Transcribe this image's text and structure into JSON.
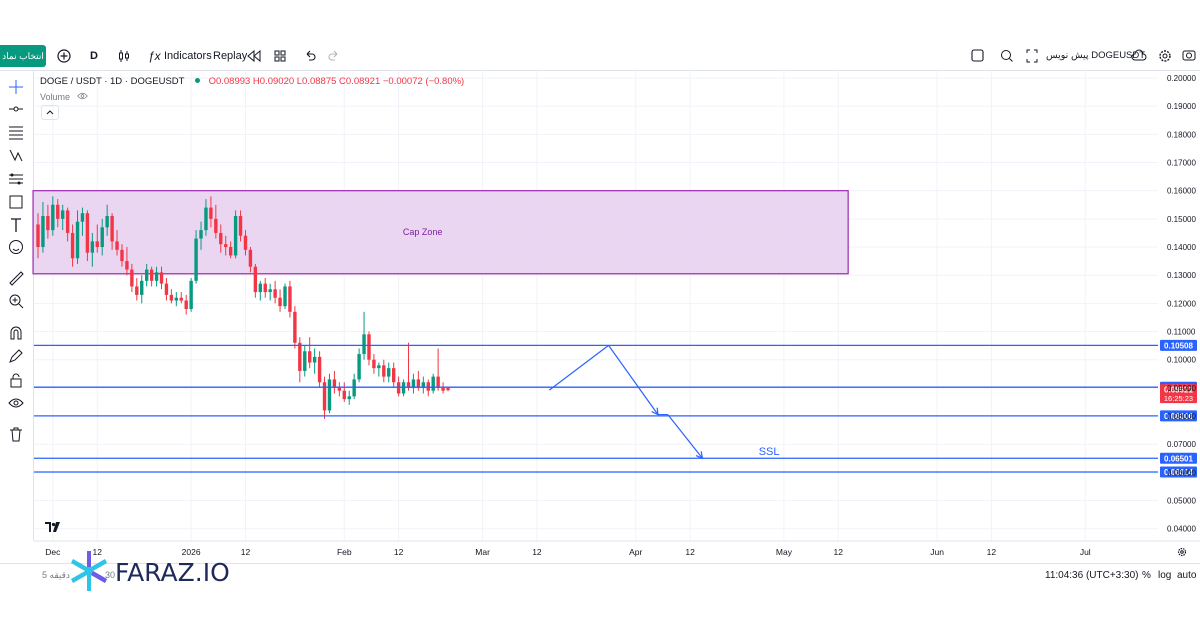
{
  "toolbar": {
    "symbol_button": "انتخاب نماد",
    "interval": "D",
    "indicators_label": "Indicators",
    "replay_label": "Replay",
    "publish_label": "پیش نویس DOGEUSDT",
    "icons": [
      "plus-circle-icon",
      "candles-icon",
      "fx-icon",
      "rewind-icon",
      "layout-icon",
      "undo-icon",
      "redo-icon",
      "square-icon",
      "alert-icon",
      "fullscreen-icon",
      "cloud-icon",
      "gear-icon",
      "camera-icon"
    ]
  },
  "legend": {
    "title": "DOGE / USDT · 1D · DOGEUSDT",
    "ohlc": "O0.08993 H0.09020 L0.08875 C0.08921 −0.00072 (−0.80%)",
    "volume_label": "Volume"
  },
  "bottombar": {
    "time": "11:04:36 (UTC+3:30)",
    "percent": "%",
    "log": "log",
    "auto": "auto",
    "left_range": "5 دقیقه",
    "left_range2": "30"
  },
  "logo": {
    "text": "FARAZ.IO"
  },
  "colors": {
    "up": "#089981",
    "down": "#f23645",
    "line": "#2962ff",
    "zone_border": "#9c27b0",
    "zone_fill": "#e7cff0",
    "current": "#f23645"
  },
  "chart_data": {
    "type": "candlestick",
    "title": "DOGE / USDT · 1D · DOGEUSDT",
    "ylim": [
      0.035,
      0.2
    ],
    "y_ticks": [
      0.2,
      0.19,
      0.18,
      0.17,
      0.16,
      0.15,
      0.14,
      0.13,
      0.12,
      0.11,
      0.1,
      0.09,
      0.08,
      0.07,
      0.06,
      0.05,
      0.04
    ],
    "y_tick_labels": [
      "0.20000",
      "0.19000",
      "0.18000",
      "0.17000",
      "0.16000",
      "0.15000",
      "0.14000",
      "0.13000",
      "0.12000",
      "0.11000",
      "0.10000",
      "0.09000",
      "0.08000",
      "0.07000",
      "0.06000",
      "0.05000",
      "0.04000"
    ],
    "x_ticks": [
      {
        "label": "Dec",
        "day": 3
      },
      {
        "label": "12",
        "day": 12
      },
      {
        "label": "2026",
        "day": 31
      },
      {
        "label": "12",
        "day": 42
      },
      {
        "label": "Feb",
        "day": 62
      },
      {
        "label": "12",
        "day": 73
      },
      {
        "label": "Mar",
        "day": 90
      },
      {
        "label": "12",
        "day": 101
      },
      {
        "label": "Apr",
        "day": 121
      },
      {
        "label": "12",
        "day": 132
      },
      {
        "label": "May",
        "day": 151
      },
      {
        "label": "12",
        "day": 162
      },
      {
        "label": "Jun",
        "day": 182
      },
      {
        "label": "12",
        "day": 193
      },
      {
        "label": "Jul",
        "day": 212
      }
    ],
    "xlim": [
      0,
      222
    ],
    "candles": [
      [
        0.148,
        0.152,
        0.136,
        0.14
      ],
      [
        0.14,
        0.156,
        0.138,
        0.151
      ],
      [
        0.151,
        0.155,
        0.143,
        0.146
      ],
      [
        0.146,
        0.158,
        0.144,
        0.155
      ],
      [
        0.155,
        0.157,
        0.147,
        0.15
      ],
      [
        0.15,
        0.155,
        0.146,
        0.153
      ],
      [
        0.153,
        0.154,
        0.142,
        0.145
      ],
      [
        0.145,
        0.148,
        0.133,
        0.136
      ],
      [
        0.136,
        0.153,
        0.134,
        0.149
      ],
      [
        0.149,
        0.154,
        0.144,
        0.152
      ],
      [
        0.152,
        0.153,
        0.135,
        0.138
      ],
      [
        0.138,
        0.145,
        0.133,
        0.142
      ],
      [
        0.142,
        0.148,
        0.138,
        0.14
      ],
      [
        0.14,
        0.15,
        0.137,
        0.147
      ],
      [
        0.147,
        0.155,
        0.144,
        0.151
      ],
      [
        0.151,
        0.152,
        0.139,
        0.142
      ],
      [
        0.142,
        0.146,
        0.137,
        0.139
      ],
      [
        0.139,
        0.141,
        0.133,
        0.135
      ],
      [
        0.135,
        0.14,
        0.13,
        0.132
      ],
      [
        0.132,
        0.134,
        0.124,
        0.126
      ],
      [
        0.126,
        0.129,
        0.121,
        0.123
      ],
      [
        0.123,
        0.13,
        0.12,
        0.128
      ],
      [
        0.128,
        0.134,
        0.126,
        0.132
      ],
      [
        0.132,
        0.133,
        0.126,
        0.128
      ],
      [
        0.128,
        0.133,
        0.126,
        0.131
      ],
      [
        0.131,
        0.133,
        0.125,
        0.127
      ],
      [
        0.127,
        0.129,
        0.121,
        0.123
      ],
      [
        0.123,
        0.125,
        0.12,
        0.121
      ],
      [
        0.121,
        0.124,
        0.119,
        0.122
      ],
      [
        0.122,
        0.124,
        0.12,
        0.121
      ],
      [
        0.121,
        0.123,
        0.116,
        0.118
      ],
      [
        0.118,
        0.129,
        0.117,
        0.128
      ],
      [
        0.128,
        0.146,
        0.127,
        0.143
      ],
      [
        0.143,
        0.149,
        0.139,
        0.146
      ],
      [
        0.146,
        0.157,
        0.144,
        0.154
      ],
      [
        0.154,
        0.158,
        0.147,
        0.15
      ],
      [
        0.15,
        0.155,
        0.143,
        0.145
      ],
      [
        0.145,
        0.148,
        0.138,
        0.141
      ],
      [
        0.141,
        0.144,
        0.137,
        0.14
      ],
      [
        0.14,
        0.142,
        0.136,
        0.137
      ],
      [
        0.137,
        0.153,
        0.136,
        0.151
      ],
      [
        0.151,
        0.153,
        0.142,
        0.144
      ],
      [
        0.144,
        0.146,
        0.137,
        0.139
      ],
      [
        0.139,
        0.14,
        0.131,
        0.133
      ],
      [
        0.133,
        0.134,
        0.122,
        0.124
      ],
      [
        0.124,
        0.128,
        0.121,
        0.127
      ],
      [
        0.127,
        0.129,
        0.122,
        0.124
      ],
      [
        0.124,
        0.127,
        0.121,
        0.125
      ],
      [
        0.125,
        0.128,
        0.12,
        0.122
      ],
      [
        0.122,
        0.125,
        0.117,
        0.119
      ],
      [
        0.119,
        0.127,
        0.118,
        0.126
      ],
      [
        0.126,
        0.128,
        0.115,
        0.117
      ],
      [
        0.117,
        0.119,
        0.104,
        0.106
      ],
      [
        0.106,
        0.108,
        0.092,
        0.096
      ],
      [
        0.096,
        0.105,
        0.094,
        0.103
      ],
      [
        0.103,
        0.108,
        0.097,
        0.099
      ],
      [
        0.099,
        0.104,
        0.095,
        0.101
      ],
      [
        0.101,
        0.103,
        0.09,
        0.092
      ],
      [
        0.092,
        0.094,
        0.079,
        0.082
      ],
      [
        0.082,
        0.095,
        0.081,
        0.093
      ],
      [
        0.093,
        0.096,
        0.088,
        0.09
      ],
      [
        0.09,
        0.092,
        0.087,
        0.089
      ],
      [
        0.089,
        0.092,
        0.085,
        0.086
      ],
      [
        0.086,
        0.089,
        0.084,
        0.087
      ],
      [
        0.087,
        0.095,
        0.086,
        0.093
      ],
      [
        0.093,
        0.104,
        0.092,
        0.102
      ],
      [
        0.102,
        0.117,
        0.1,
        0.109
      ],
      [
        0.109,
        0.11,
        0.098,
        0.1
      ],
      [
        0.1,
        0.102,
        0.095,
        0.097
      ],
      [
        0.097,
        0.099,
        0.094,
        0.098
      ],
      [
        0.098,
        0.1,
        0.092,
        0.094
      ],
      [
        0.094,
        0.099,
        0.092,
        0.097
      ],
      [
        0.097,
        0.099,
        0.09,
        0.092
      ],
      [
        0.092,
        0.094,
        0.087,
        0.088
      ],
      [
        0.088,
        0.093,
        0.087,
        0.092
      ],
      [
        0.092,
        0.106,
        0.089,
        0.09
      ],
      [
        0.09,
        0.095,
        0.088,
        0.093
      ],
      [
        0.093,
        0.096,
        0.089,
        0.09
      ],
      [
        0.09,
        0.094,
        0.088,
        0.092
      ],
      [
        0.092,
        0.093,
        0.087,
        0.089
      ],
      [
        0.089,
        0.095,
        0.088,
        0.094
      ],
      [
        0.094,
        0.104,
        0.089,
        0.09
      ],
      [
        0.09,
        0.092,
        0.088,
        0.089
      ],
      [
        0.08993,
        0.0902,
        0.08875,
        0.08921
      ]
    ],
    "zones": [
      {
        "label": "Cap Zone",
        "day_start": -1,
        "day_end": 164,
        "y_low": 0.1305,
        "y_high": 0.16
      }
    ],
    "levels": [
      {
        "value": 0.10508,
        "label": "0.10508"
      },
      {
        "value": 0.09024,
        "label": "0.09024"
      },
      {
        "value": 0.08006,
        "label": "0.08006"
      },
      {
        "value": 0.06501,
        "label": "0.06501"
      },
      {
        "value": 0.06014,
        "label": "0.06014"
      }
    ],
    "current_price": {
      "value": 0.08921,
      "label": "0.08921",
      "countdown": "16:25:23"
    },
    "projection": {
      "points": [
        [
          103.5,
          0.08921
        ],
        [
          115.5,
          0.10508
        ],
        [
          125.5,
          0.0805
        ],
        [
          127.5,
          0.0805
        ],
        [
          134.5,
          0.06501
        ]
      ],
      "arrow_ends": [
        2,
        4
      ]
    },
    "annotations": [
      {
        "text": "SSL",
        "day": 148,
        "value": 0.0659
      }
    ]
  }
}
